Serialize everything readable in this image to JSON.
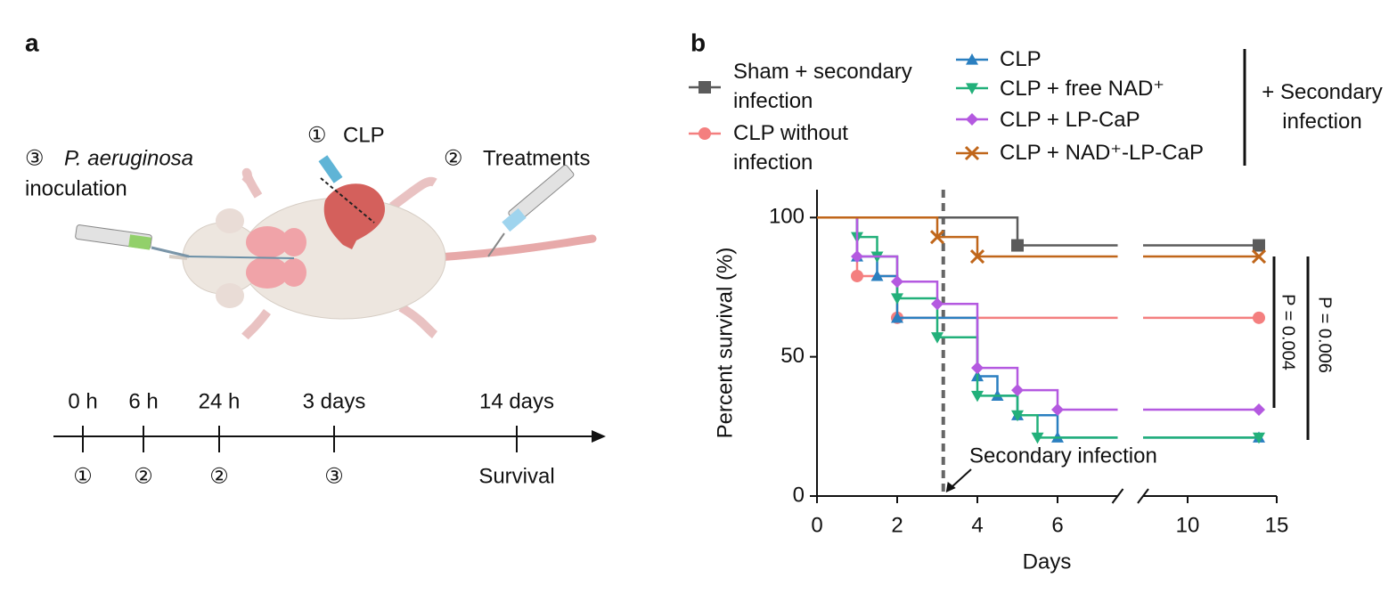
{
  "panel_a": {
    "label": "a",
    "steps": [
      {
        "number": "①",
        "text": "CLP"
      },
      {
        "number": "②",
        "text": "Treatments"
      },
      {
        "number": "③",
        "text": "P. aeruginosa",
        "text2": "inoculation"
      }
    ],
    "timeline": {
      "times": [
        "0 h",
        "6 h",
        "24 h",
        "3 days",
        "14 days"
      ],
      "events": [
        "①",
        "②",
        "②",
        "③",
        "Survival"
      ]
    }
  },
  "chart_data": {
    "type": "step",
    "label": "b",
    "xlabel": "Days",
    "ylabel": "Percent survival (%)",
    "xlim": [
      0,
      15
    ],
    "xsegments": [
      [
        0,
        7.5
      ],
      [
        7.5,
        15
      ]
    ],
    "xticks": [
      0,
      2,
      4,
      6,
      10,
      15
    ],
    "ylim": [
      0,
      110
    ],
    "yticks": [
      0,
      50,
      100
    ],
    "series": [
      {
        "name": "Sham + secondary infection",
        "color": "#5b5b5b",
        "marker": "square",
        "x": [
          0,
          5,
          14
        ],
        "values": [
          100,
          90,
          90
        ]
      },
      {
        "name": "CLP without infection",
        "color": "#f47f7f",
        "marker": "circle",
        "x": [
          0,
          1,
          2,
          14
        ],
        "values": [
          100,
          79,
          64,
          64
        ]
      },
      {
        "name": "CLP",
        "color": "#2a7fc0",
        "marker": "triangle-up",
        "x": [
          0,
          1,
          1.5,
          2,
          4,
          4.5,
          5,
          6,
          14
        ],
        "values": [
          100,
          86,
          79,
          64,
          43,
          36,
          29,
          21,
          21
        ]
      },
      {
        "name": "CLP + free NAD⁺",
        "color": "#22b07a",
        "marker": "triangle-down",
        "x": [
          0,
          1,
          1.5,
          2,
          3,
          4,
          5,
          5.5,
          14
        ],
        "values": [
          100,
          93,
          86,
          71,
          57,
          36,
          29,
          21,
          21
        ]
      },
      {
        "name": "CLP + LP-CaP",
        "color": "#b459e0",
        "marker": "diamond",
        "x": [
          0,
          1,
          2,
          3,
          4,
          5,
          6,
          14
        ],
        "values": [
          100,
          86,
          77,
          69,
          46,
          38,
          31,
          31
        ]
      },
      {
        "name": "CLP + NAD⁺-LP-CaP",
        "color": "#c0661a",
        "marker": "cross",
        "x": [
          0,
          3,
          4,
          14
        ],
        "values": [
          100,
          93,
          86,
          86
        ]
      }
    ],
    "group_label": "+ Secondary infection",
    "annotation": {
      "text": "Secondary infection",
      "x": 3.15
    },
    "pvalues": [
      "P = 0.004",
      "P = 0.006"
    ]
  }
}
